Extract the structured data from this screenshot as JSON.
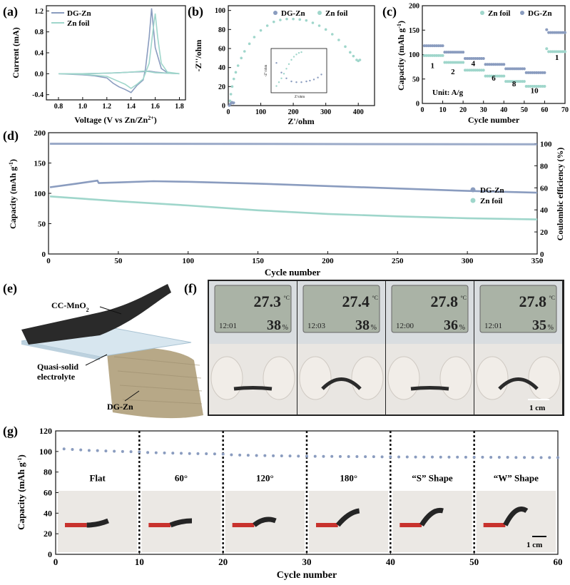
{
  "colors": {
    "dg_zn": "#8a9cbf",
    "zn_foil": "#9fd6cb",
    "axis": "#111111",
    "dark_photo": "#1b1b1b"
  },
  "panel_labels": {
    "a": "(a)",
    "b": "(b)",
    "c": "(c)",
    "d": "(d)",
    "e": "(e)",
    "f": "(f)",
    "g": "(g)"
  },
  "chart_data": [
    {
      "id": "a",
      "type": "line",
      "xlabel": "Voltage (V vs Zn/Zn",
      "xlabel_sup": "2+",
      "xlabel_end": ")",
      "ylabel": "Current (mA)",
      "xlim": [
        0.7,
        1.85
      ],
      "ylim": [
        -0.5,
        1.3
      ],
      "xticks": [
        0.8,
        1.0,
        1.2,
        1.4,
        1.6,
        1.8
      ],
      "xtick_labels": [
        "0.8",
        "1.0",
        "1.2",
        "1.4",
        "1.6",
        "1.8"
      ],
      "yticks": [
        -0.4,
        0.0,
        0.4,
        0.8,
        1.2
      ],
      "ytick_labels": [
        "-0.4",
        "0.0",
        "0.4",
        "0.8",
        "1.2"
      ],
      "legend": "top-left",
      "series": [
        {
          "name": "DG-Zn",
          "color": "#8a9cbf",
          "x": [
            0.8,
            1.0,
            1.1,
            1.2,
            1.25,
            1.3,
            1.35,
            1.4,
            1.45,
            1.5,
            1.52,
            1.55,
            1.57,
            1.6,
            1.65,
            1.7,
            1.8,
            1.7,
            1.6,
            1.55,
            1.5,
            1.4,
            1.3,
            1.2,
            1.0,
            0.8
          ],
          "y": [
            0.0,
            -0.02,
            -0.04,
            -0.08,
            -0.18,
            -0.25,
            -0.3,
            -0.36,
            -0.22,
            -0.12,
            0.1,
            0.7,
            1.25,
            0.5,
            0.1,
            0.02,
            0.0,
            0.01,
            0.03,
            0.05,
            0.04,
            0.03,
            0.02,
            0.01,
            0.0,
            0.0
          ]
        },
        {
          "name": "Zn foil",
          "color": "#9fd6cb",
          "x": [
            0.8,
            1.0,
            1.1,
            1.2,
            1.25,
            1.3,
            1.35,
            1.4,
            1.45,
            1.5,
            1.55,
            1.58,
            1.6,
            1.62,
            1.65,
            1.7,
            1.8,
            1.7,
            1.6,
            1.55,
            1.5,
            1.4,
            1.3,
            1.2,
            1.0,
            0.8
          ],
          "y": [
            0.0,
            -0.01,
            -0.03,
            -0.05,
            -0.1,
            -0.15,
            -0.2,
            -0.28,
            -0.2,
            -0.1,
            0.2,
            0.8,
            1.15,
            0.7,
            0.2,
            0.03,
            0.0,
            0.01,
            0.02,
            0.04,
            0.05,
            0.03,
            0.02,
            0.01,
            0.0,
            0.0
          ]
        }
      ]
    },
    {
      "id": "b",
      "type": "scatter",
      "xlabel": "Z'/ohm",
      "ylabel": "-Z''/ohm",
      "xlim": [
        0,
        450
      ],
      "ylim": [
        0,
        105
      ],
      "xticks": [
        0,
        100,
        200,
        300,
        400
      ],
      "xtick_labels": [
        "0",
        "100",
        "200",
        "300",
        "400"
      ],
      "yticks": [
        0,
        20,
        40,
        60,
        80,
        100
      ],
      "ytick_labels": [
        "0",
        "20",
        "40",
        "60",
        "80",
        "100"
      ],
      "legend": "top",
      "series": [
        {
          "name": "DG-Zn",
          "color": "#8a9cbf",
          "x": [
            3,
            5,
            7,
            9,
            11,
            13,
            15,
            17
          ],
          "y": [
            0,
            1,
            2,
            3,
            3.5,
            3,
            2.5,
            3
          ]
        },
        {
          "name": "Zn foil",
          "color": "#9fd6cb",
          "x": [
            5,
            8,
            12,
            17,
            23,
            30,
            40,
            50,
            65,
            80,
            100,
            120,
            140,
            160,
            180,
            200,
            220,
            240,
            260,
            280,
            300,
            320,
            340,
            360,
            375,
            385,
            395,
            400,
            405
          ],
          "y": [
            5,
            12,
            20,
            28,
            35,
            42,
            50,
            57,
            65,
            72,
            79,
            84,
            88,
            90,
            91,
            91,
            90.5,
            89.5,
            87,
            84,
            80,
            75,
            69,
            62,
            56,
            52,
            48,
            47,
            48
          ]
        }
      ],
      "inset": {
        "xlabel": "Z'/ohm",
        "ylabel": "-Z''/ohm",
        "dg": {
          "x": [
            0.05,
            0.15,
            0.25,
            0.35,
            0.45,
            0.55,
            0.65,
            0.72,
            0.8,
            0.88,
            0.95
          ],
          "y": [
            0.7,
            0.45,
            0.3,
            0.22,
            0.2,
            0.2,
            0.22,
            0.24,
            0.27,
            0.32,
            0.4
          ]
        },
        "zn": {
          "x": [
            0.05,
            0.1,
            0.15,
            0.2,
            0.25,
            0.3,
            0.35,
            0.4,
            0.45,
            0.5,
            0.55
          ],
          "y": [
            0.1,
            0.2,
            0.3,
            0.42,
            0.55,
            0.67,
            0.78,
            0.86,
            0.92,
            0.96,
            0.98
          ]
        }
      }
    },
    {
      "id": "c",
      "type": "scatter",
      "xlabel": "Cycle number",
      "ylabel": "Capacity (mAh g",
      "ylabel_sup": "-1",
      "ylabel_end": ")",
      "xlim": [
        0,
        70
      ],
      "ylim": [
        0,
        200
      ],
      "xticks": [
        0,
        10,
        20,
        30,
        40,
        50,
        60,
        70
      ],
      "xtick_labels": [
        "0",
        "10",
        "20",
        "30",
        "40",
        "50",
        "60",
        "70"
      ],
      "yticks": [
        0,
        50,
        100,
        150,
        200
      ],
      "ytick_labels": [
        "0",
        "50",
        "100",
        "150",
        "200"
      ],
      "legend": "top",
      "annotation": "Unit: A/g",
      "rate_labels": [
        {
          "text": "1",
          "x": 5,
          "y": 72
        },
        {
          "text": "2",
          "x": 15,
          "y": 60
        },
        {
          "text": "4",
          "x": 25,
          "y": 77
        },
        {
          "text": "6",
          "x": 35,
          "y": 47
        },
        {
          "text": "8",
          "x": 45,
          "y": 35
        },
        {
          "text": "10",
          "x": 55,
          "y": 21
        },
        {
          "text": "1",
          "x": 66,
          "y": 89
        }
      ],
      "series": [
        {
          "name": "DG-Zn",
          "color": "#8a9cbf",
          "segments": [
            {
              "from": 1,
              "to": 10,
              "y": 118
            },
            {
              "from": 11,
              "to": 20,
              "y": 105
            },
            {
              "from": 21,
              "to": 30,
              "y": 92
            },
            {
              "from": 31,
              "to": 40,
              "y": 80
            },
            {
              "from": 41,
              "to": 50,
              "y": 71
            },
            {
              "from": 51,
              "to": 60,
              "y": 63
            },
            {
              "from": 61,
              "to": 70,
              "y": 145
            }
          ]
        },
        {
          "name": "Zn foil",
          "color": "#9fd6cb",
          "segments": [
            {
              "from": 1,
              "to": 10,
              "y": 98
            },
            {
              "from": 11,
              "to": 20,
              "y": 84
            },
            {
              "from": 21,
              "to": 30,
              "y": 68
            },
            {
              "from": 31,
              "to": 40,
              "y": 56
            },
            {
              "from": 41,
              "to": 50,
              "y": 45
            },
            {
              "from": 51,
              "to": 60,
              "y": 35
            },
            {
              "from": 61,
              "to": 70,
              "y": 106
            }
          ]
        }
      ]
    },
    {
      "id": "d",
      "type": "line",
      "xlabel": "Cycle number",
      "ylabel": "Capacity (mAh g",
      "ylabel_sup": "-1",
      "ylabel_end": ")",
      "y2label": "Coulombic efficiency (%)",
      "xlim": [
        0,
        350
      ],
      "ylim": [
        0,
        200
      ],
      "y2lim": [
        0,
        110
      ],
      "xticks": [
        0,
        50,
        100,
        150,
        200,
        250,
        300,
        350
      ],
      "xtick_labels": [
        "0",
        "50",
        "100",
        "150",
        "200",
        "250",
        "300",
        "350"
      ],
      "yticks": [
        0,
        50,
        100,
        150,
        200
      ],
      "ytick_labels": [
        "0",
        "50",
        "100",
        "150",
        "200"
      ],
      "y2ticks": [
        0,
        20,
        40,
        60,
        80,
        100
      ],
      "y2tick_labels": [
        "0",
        "20",
        "40",
        "60",
        "80",
        "100"
      ],
      "legend": "right",
      "series": [
        {
          "name": "DG-Zn",
          "color": "#8a9cbf",
          "x": [
            1,
            20,
            35,
            36,
            50,
            75,
            100,
            150,
            200,
            250,
            300,
            350
          ],
          "y": [
            110,
            116,
            121,
            117,
            118,
            120,
            119,
            116,
            112,
            108,
            104,
            101
          ]
        },
        {
          "name": "Zn foil",
          "color": "#9fd6cb",
          "x": [
            1,
            25,
            50,
            100,
            150,
            200,
            250,
            300,
            350
          ],
          "y": [
            95,
            91,
            87,
            80,
            72,
            66,
            62,
            59,
            57
          ]
        },
        {
          "name": "CE",
          "color": "#8a9cbf",
          "x": [
            1,
            350
          ],
          "y": [
            100,
            99.5
          ]
        }
      ]
    },
    {
      "id": "g",
      "type": "scatter",
      "xlabel": "Cycle number",
      "ylabel": "Capacity (mAh g",
      "ylabel_sup": "-1",
      "ylabel_end": ")",
      "xlim": [
        0,
        60
      ],
      "ylim": [
        0,
        120
      ],
      "xticks": [
        0,
        10,
        20,
        30,
        40,
        50,
        60
      ],
      "xtick_labels": [
        "0",
        "10",
        "20",
        "30",
        "40",
        "50",
        "60"
      ],
      "yticks": [
        0,
        20,
        40,
        60,
        80,
        100,
        120
      ],
      "ytick_labels": [
        "0",
        "20",
        "40",
        "60",
        "80",
        "100",
        "120"
      ],
      "dividers": [
        10,
        20,
        30,
        40,
        50
      ],
      "segment_labels": [
        "Flat",
        "60°",
        "120°",
        "180°",
        "“S” Shape",
        "“W” Shape"
      ],
      "scale_label": "1 cm",
      "series": [
        {
          "name": "DG-Zn",
          "color": "#8a9cbf",
          "x": [
            1,
            2,
            3,
            4,
            5,
            6,
            7,
            8,
            9,
            10,
            11,
            12,
            13,
            14,
            15,
            16,
            17,
            18,
            19,
            20,
            21,
            22,
            23,
            24,
            25,
            26,
            27,
            28,
            29,
            30,
            31,
            32,
            33,
            34,
            35,
            36,
            37,
            38,
            39,
            40,
            41,
            42,
            43,
            44,
            45,
            46,
            47,
            48,
            49,
            50,
            51,
            52,
            53,
            54,
            55,
            56,
            57,
            58,
            59,
            60
          ],
          "y": [
            102.5,
            102,
            101.5,
            101,
            100.8,
            100.5,
            100.2,
            100,
            99.8,
            99.5,
            99,
            98.8,
            98.6,
            98.4,
            98.2,
            98,
            97.9,
            97.8,
            97.6,
            97.5,
            96.8,
            96.5,
            96.3,
            96.1,
            96,
            95.8,
            95.7,
            95.6,
            95.5,
            95.4,
            95.3,
            95.2,
            95.2,
            95.1,
            95,
            95,
            94.9,
            94.9,
            94.8,
            94.8,
            94.7,
            94.7,
            94.6,
            94.6,
            94.6,
            94.5,
            94.5,
            94.5,
            94.4,
            94.4,
            94.4,
            94.3,
            94.3,
            94.3,
            94.2,
            94.2,
            94.2,
            94.1,
            94.1,
            94.1
          ]
        }
      ]
    }
  ],
  "panel_e": {
    "cathode": "CC-MnO",
    "cathode_sub": "2",
    "electrolyte": [
      "Quasi-solid",
      "electrolyte"
    ],
    "anode": "DG-Zn"
  },
  "panel_f": {
    "displays": [
      {
        "temp": "27.3",
        "time": "12:01",
        "humidity": "38"
      },
      {
        "temp": "27.4",
        "time": "12:03",
        "humidity": "38"
      },
      {
        "temp": "27.8",
        "time": "12:00",
        "humidity": "36"
      },
      {
        "temp": "27.8",
        "time": "12:01",
        "humidity": "35"
      }
    ],
    "temp_unit": "°C",
    "humidity_unit": "%",
    "scale_label": "1 cm"
  }
}
